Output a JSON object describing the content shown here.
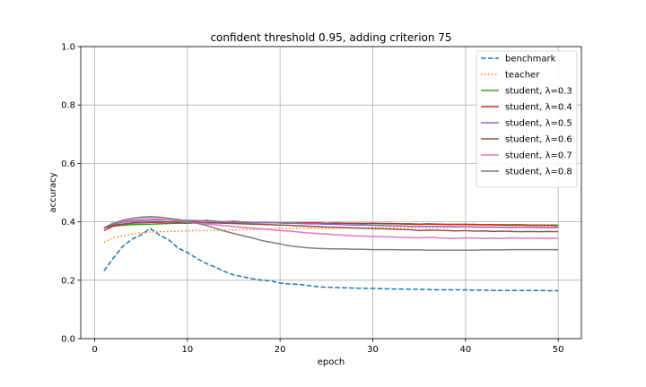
{
  "chart_data": {
    "type": "line",
    "title": "confident threshold 0.95, adding criterion 75",
    "xlabel": "epoch",
    "ylabel": "accuracy",
    "xlim": [
      -1.5,
      52.5
    ],
    "ylim": [
      0.0,
      1.0
    ],
    "xticks": [
      0,
      10,
      20,
      30,
      40,
      50
    ],
    "yticks": [
      0.0,
      0.2,
      0.4,
      0.6,
      0.8,
      1.0
    ],
    "xtick_labels": [
      "0",
      "10",
      "20",
      "30",
      "40",
      "50"
    ],
    "ytick_labels": [
      "0.0",
      "0.2",
      "0.4",
      "0.6",
      "0.8",
      "1.0"
    ],
    "grid": true,
    "legend_position": "top-right",
    "x": [
      1,
      2,
      3,
      4,
      5,
      6,
      7,
      8,
      9,
      10,
      11,
      12,
      13,
      14,
      15,
      16,
      17,
      18,
      19,
      20,
      21,
      22,
      23,
      24,
      25,
      26,
      27,
      28,
      29,
      30,
      31,
      32,
      33,
      34,
      35,
      36,
      37,
      38,
      39,
      40,
      41,
      42,
      43,
      44,
      45,
      46,
      47,
      48,
      49,
      50
    ],
    "series": [
      {
        "name": "benchmark",
        "color": "#1f77b4",
        "dash": "dashed",
        "values": [
          0.232,
          0.275,
          0.315,
          0.34,
          0.355,
          0.377,
          0.355,
          0.338,
          0.31,
          0.295,
          0.275,
          0.258,
          0.245,
          0.23,
          0.218,
          0.212,
          0.205,
          0.2,
          0.198,
          0.19,
          0.187,
          0.186,
          0.182,
          0.178,
          0.176,
          0.175,
          0.174,
          0.173,
          0.172,
          0.172,
          0.171,
          0.17,
          0.17,
          0.169,
          0.169,
          0.168,
          0.167,
          0.167,
          0.167,
          0.167,
          0.166,
          0.166,
          0.165,
          0.165,
          0.165,
          0.165,
          0.165,
          0.165,
          0.164,
          0.164
        ]
      },
      {
        "name": "teacher",
        "color": "#ff7f0e",
        "dash": "dotted",
        "values": [
          0.33,
          0.345,
          0.352,
          0.358,
          0.362,
          0.365,
          0.366,
          0.367,
          0.368,
          0.369,
          0.37,
          0.37,
          0.371,
          0.372,
          0.372,
          0.373,
          0.374,
          0.375,
          0.376,
          0.377,
          0.377,
          0.378,
          0.378,
          0.378,
          0.378,
          0.379,
          0.379,
          0.379,
          0.379,
          0.38,
          0.38,
          0.38,
          0.38,
          0.381,
          0.381,
          0.381,
          0.381,
          0.381,
          0.382,
          0.382,
          0.382,
          0.382,
          0.382,
          0.382,
          0.383,
          0.383,
          0.383,
          0.383,
          0.383,
          0.383
        ]
      },
      {
        "name": "student, λ=0.3",
        "color": "#2ca02c",
        "dash": "solid",
        "values": [
          0.38,
          0.385,
          0.388,
          0.39,
          0.391,
          0.392,
          0.393,
          0.394,
          0.395,
          0.395,
          0.396,
          0.396,
          0.396,
          0.397,
          0.397,
          0.397,
          0.397,
          0.397,
          0.397,
          0.397,
          0.396,
          0.396,
          0.396,
          0.396,
          0.395,
          0.395,
          0.395,
          0.394,
          0.394,
          0.394,
          0.393,
          0.393,
          0.393,
          0.392,
          0.392,
          0.392,
          0.392,
          0.391,
          0.391,
          0.391,
          0.391,
          0.39,
          0.39,
          0.39,
          0.39,
          0.39,
          0.389,
          0.389,
          0.389,
          0.389
        ]
      },
      {
        "name": "student, λ=0.4",
        "color": "#d62728",
        "dash": "solid",
        "values": [
          0.37,
          0.385,
          0.392,
          0.396,
          0.398,
          0.399,
          0.4,
          0.4,
          0.401,
          0.402,
          0.401,
          0.405,
          0.402,
          0.4,
          0.402,
          0.399,
          0.398,
          0.398,
          0.397,
          0.396,
          0.395,
          0.396,
          0.396,
          0.396,
          0.395,
          0.396,
          0.395,
          0.395,
          0.394,
          0.395,
          0.394,
          0.394,
          0.393,
          0.393,
          0.392,
          0.393,
          0.392,
          0.391,
          0.391,
          0.391,
          0.39,
          0.39,
          0.39,
          0.389,
          0.389,
          0.389,
          0.388,
          0.388,
          0.388,
          0.387
        ]
      },
      {
        "name": "student, λ=0.5",
        "color": "#9467bd",
        "dash": "solid",
        "values": [
          0.378,
          0.392,
          0.398,
          0.402,
          0.404,
          0.405,
          0.406,
          0.407,
          0.406,
          0.405,
          0.404,
          0.403,
          0.402,
          0.4,
          0.4,
          0.399,
          0.398,
          0.398,
          0.397,
          0.396,
          0.395,
          0.394,
          0.393,
          0.393,
          0.392,
          0.391,
          0.39,
          0.389,
          0.389,
          0.388,
          0.387,
          0.386,
          0.386,
          0.385,
          0.385,
          0.384,
          0.384,
          0.383,
          0.383,
          0.383,
          0.382,
          0.382,
          0.382,
          0.381,
          0.381,
          0.381,
          0.381,
          0.38,
          0.38,
          0.38
        ]
      },
      {
        "name": "student, λ=0.6",
        "color": "#8c564b",
        "dash": "solid",
        "values": [
          0.38,
          0.388,
          0.392,
          0.395,
          0.397,
          0.398,
          0.398,
          0.399,
          0.399,
          0.398,
          0.397,
          0.397,
          0.396,
          0.395,
          0.394,
          0.393,
          0.392,
          0.391,
          0.39,
          0.389,
          0.388,
          0.386,
          0.385,
          0.384,
          0.382,
          0.381,
          0.38,
          0.379,
          0.378,
          0.377,
          0.376,
          0.375,
          0.374,
          0.373,
          0.37,
          0.372,
          0.371,
          0.37,
          0.369,
          0.37,
          0.368,
          0.369,
          0.367,
          0.368,
          0.367,
          0.366,
          0.367,
          0.366,
          0.367,
          0.366
        ]
      },
      {
        "name": "student, λ=0.7",
        "color": "#e377c2",
        "dash": "solid",
        "values": [
          0.38,
          0.395,
          0.402,
          0.407,
          0.41,
          0.412,
          0.41,
          0.407,
          0.404,
          0.4,
          0.396,
          0.393,
          0.39,
          0.387,
          0.384,
          0.381,
          0.378,
          0.376,
          0.373,
          0.37,
          0.368,
          0.365,
          0.362,
          0.36,
          0.358,
          0.356,
          0.354,
          0.352,
          0.351,
          0.35,
          0.349,
          0.348,
          0.347,
          0.346,
          0.345,
          0.347,
          0.345,
          0.344,
          0.343,
          0.345,
          0.344,
          0.343,
          0.344,
          0.343,
          0.345,
          0.344,
          0.344,
          0.344,
          0.343,
          0.343
        ]
      },
      {
        "name": "student, λ=0.8",
        "color": "#7f7f7f",
        "dash": "solid",
        "values": [
          0.38,
          0.395,
          0.405,
          0.412,
          0.416,
          0.418,
          0.416,
          0.412,
          0.408,
          0.402,
          0.395,
          0.388,
          0.378,
          0.368,
          0.36,
          0.352,
          0.345,
          0.336,
          0.33,
          0.324,
          0.318,
          0.314,
          0.311,
          0.309,
          0.308,
          0.307,
          0.307,
          0.306,
          0.306,
          0.305,
          0.305,
          0.305,
          0.304,
          0.304,
          0.304,
          0.303,
          0.303,
          0.303,
          0.303,
          0.303,
          0.303,
          0.304,
          0.304,
          0.304,
          0.305,
          0.305,
          0.305,
          0.305,
          0.305,
          0.305
        ]
      }
    ]
  }
}
